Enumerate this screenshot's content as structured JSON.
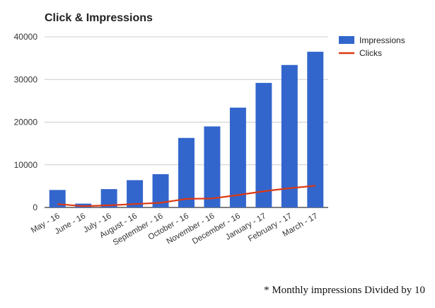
{
  "chart_data": {
    "type": "bar",
    "title": "Click & Impressions",
    "categories": [
      "May - 16",
      "June - 16",
      "July - 16",
      "August - 16",
      "September - 16",
      "October - 16",
      "November - 16",
      "December - 16",
      "January - 17",
      "February - 17",
      "March - 17"
    ],
    "series": [
      {
        "name": "Impressions",
        "type": "bar",
        "color": "#3366cc",
        "values": [
          4100,
          900,
          4300,
          6400,
          7800,
          16300,
          19000,
          23400,
          29200,
          33400,
          36500
        ]
      },
      {
        "name": "Clicks",
        "type": "line",
        "color": "#dc3912",
        "values": [
          800,
          300,
          500,
          800,
          1100,
          2000,
          2100,
          2900,
          3800,
          4500,
          5100
        ]
      }
    ],
    "ylim": [
      0,
      40000
    ],
    "yticks": [
      0,
      10000,
      20000,
      30000,
      40000
    ],
    "grid": true,
    "legend": "top-right",
    "xlabel": "",
    "ylabel": ""
  },
  "footnote": "* Monthly impressions Divided by 10"
}
